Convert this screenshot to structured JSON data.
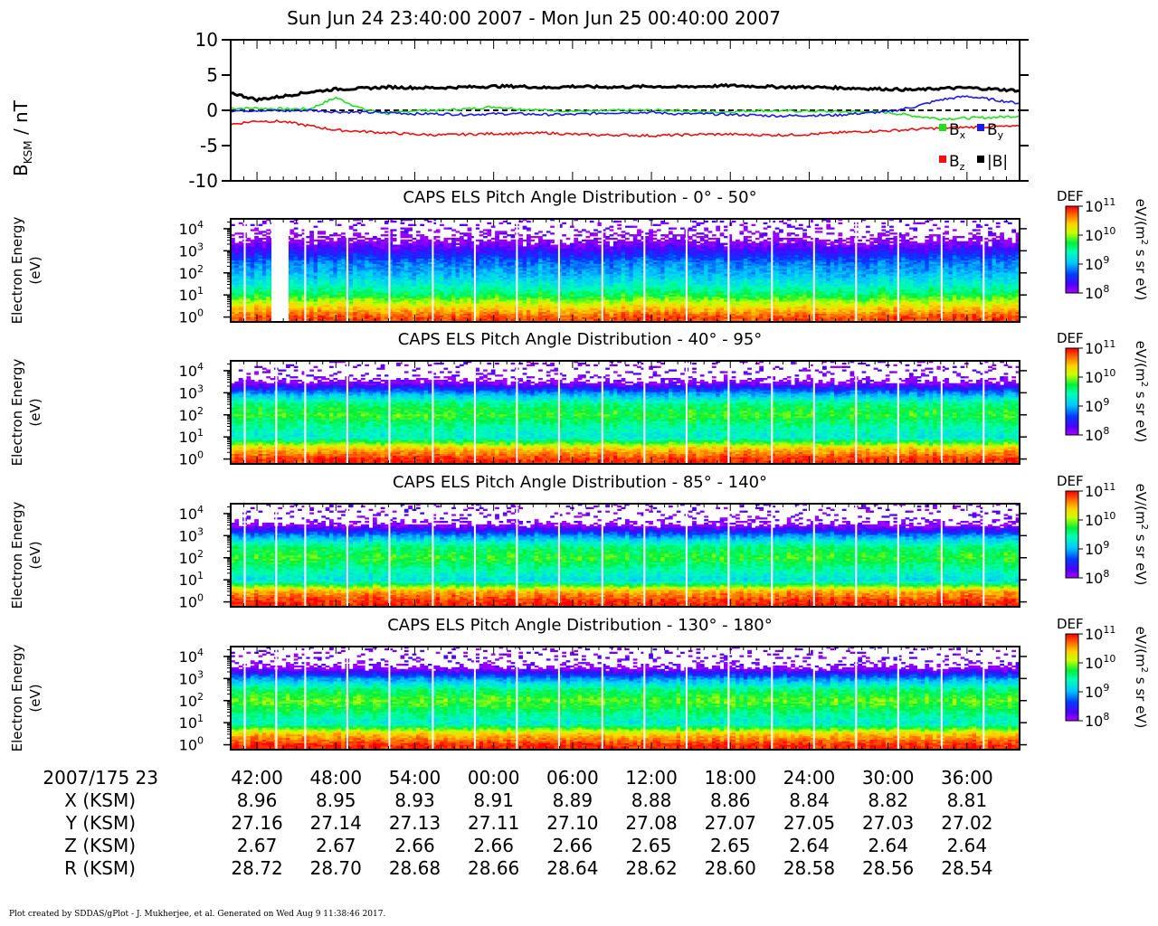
{
  "header": {
    "title": "Sun Jun 24 23:40:00 2007 - Mon Jun 25 00:40:00 2007"
  },
  "mag_panel": {
    "ylabel_main": "B",
    "ylabel_sub": "KSM",
    "ylabel_unit": " / nT",
    "yticks": [
      "10",
      "5",
      "0",
      "-5",
      "-10"
    ],
    "legend": {
      "bx_base": "B",
      "bx_sub": "x",
      "by_base": "B",
      "by_sub": "y",
      "bz_base": "B",
      "bz_sub": "z",
      "bmag": "|B|"
    }
  },
  "spectrogram_panels": [
    {
      "title": "CAPS ELS Pitch Angle Distribution - 0° - 50°",
      "ylabel1": "Electron Energy",
      "ylabel2": "(eV)"
    },
    {
      "title": "CAPS ELS Pitch Angle Distribution - 40° - 95°",
      "ylabel1": "Electron Energy",
      "ylabel2": "(eV)"
    },
    {
      "title": "CAPS ELS Pitch Angle Distribution - 85° - 140°",
      "ylabel1": "Electron Energy",
      "ylabel2": "(eV)"
    },
    {
      "title": "CAPS ELS Pitch Angle Distribution - 130° - 180°",
      "ylabel1": "Electron Energy",
      "ylabel2": "(eV)"
    }
  ],
  "colorbar": {
    "label": "DEF",
    "unit_pre": "eV/(m",
    "unit_sup": "2",
    "unit_post": " s sr eV)",
    "tick_base": "10",
    "tick_exps": [
      "11",
      "10",
      "9",
      "8"
    ]
  },
  "ephemeris": {
    "time_label": "2007/175 23",
    "times": [
      "42:00",
      "48:00",
      "54:00",
      "00:00",
      "06:00",
      "12:00",
      "18:00",
      "24:00",
      "30:00",
      "36:00"
    ],
    "rows": [
      {
        "label": "X (KSM)",
        "values": [
          "8.96",
          "8.95",
          "8.93",
          "8.91",
          "8.89",
          "8.88",
          "8.86",
          "8.84",
          "8.82",
          "8.81"
        ]
      },
      {
        "label": "Y (KSM)",
        "values": [
          "27.16",
          "27.14",
          "27.13",
          "27.11",
          "27.10",
          "27.08",
          "27.07",
          "27.05",
          "27.03",
          "27.02"
        ]
      },
      {
        "label": "Z (KSM)",
        "values": [
          "2.67",
          "2.67",
          "2.66",
          "2.66",
          "2.66",
          "2.65",
          "2.65",
          "2.64",
          "2.64",
          "2.64"
        ]
      },
      {
        "label": "R (KSM)",
        "values": [
          "28.72",
          "28.70",
          "28.68",
          "28.66",
          "28.64",
          "28.62",
          "28.60",
          "28.58",
          "28.56",
          "28.54"
        ]
      }
    ]
  },
  "footer": {
    "text": "Plot created by SDDAS/gPlot - J. Mukherjee, et al.  Generated on Wed Aug 9 11:38:46 2017."
  },
  "chart_data": [
    {
      "type": "line",
      "xlabel": "",
      "ylabel": "BKSM / nT",
      "ylim": [
        -10,
        10
      ],
      "x_minutes": [
        0,
        2,
        4,
        6,
        8,
        10,
        12,
        14,
        16,
        18,
        20,
        22,
        24,
        26,
        28,
        30,
        32,
        34,
        36,
        38,
        40,
        42,
        44,
        46,
        48,
        50,
        52,
        54,
        56,
        58,
        60
      ],
      "series": [
        {
          "name": "Bx",
          "color": "#22dd22",
          "values": [
            0.3,
            0.3,
            0.2,
            0.2,
            1.8,
            0.2,
            -0.5,
            0.0,
            0.0,
            0.2,
            0.5,
            0.2,
            0.0,
            -0.1,
            -0.1,
            0.0,
            0.0,
            0.0,
            -0.2,
            -0.2,
            0.0,
            -0.1,
            -0.1,
            -0.2,
            -0.2,
            -0.3,
            -0.8,
            -1.2,
            -1.1,
            -1.0,
            -0.8
          ]
        },
        {
          "name": "By",
          "color": "#1a1aee",
          "values": [
            -0.1,
            0.0,
            -0.1,
            0.0,
            -0.2,
            -0.3,
            -0.3,
            -0.5,
            -0.5,
            -0.6,
            -0.5,
            -0.5,
            -0.6,
            -0.6,
            -0.4,
            -0.3,
            -0.3,
            -0.5,
            -0.5,
            -0.6,
            -0.7,
            -0.8,
            -0.7,
            -0.7,
            -0.4,
            -0.2,
            0.5,
            1.5,
            2.0,
            1.5,
            1.0
          ]
        },
        {
          "name": "Bz",
          "color": "#ee1111",
          "values": [
            -2.0,
            -1.5,
            -1.6,
            -2.2,
            -2.8,
            -3.0,
            -3.2,
            -3.4,
            -3.5,
            -3.4,
            -3.3,
            -3.3,
            -3.2,
            -3.4,
            -3.5,
            -3.5,
            -3.6,
            -3.5,
            -3.4,
            -3.4,
            -3.5,
            -3.5,
            -3.4,
            -3.2,
            -3.0,
            -2.9,
            -2.7,
            -2.5,
            -2.4,
            -2.3,
            -2.3
          ]
        },
        {
          "name": "|B|",
          "color": "#000000",
          "values": [
            2.5,
            1.5,
            2.0,
            2.6,
            3.0,
            3.1,
            3.3,
            3.2,
            3.2,
            3.3,
            3.4,
            3.4,
            3.2,
            3.4,
            3.3,
            3.3,
            3.4,
            3.3,
            3.4,
            3.5,
            3.4,
            3.3,
            3.3,
            3.2,
            3.1,
            3.0,
            2.9,
            3.1,
            3.2,
            3.0,
            2.8
          ]
        }
      ]
    },
    {
      "type": "heatmap",
      "title": "CAPS ELS Pitch Angle Distribution - 0° - 50°",
      "ylabel": "Electron Energy (eV)",
      "y_scale": "log",
      "ylim": [
        0.6,
        28000
      ],
      "ytick_exps": [
        "0",
        "1",
        "2",
        "3",
        "4"
      ],
      "zlabel": "DEF eV/(m2 s sr eV)",
      "zlim": [
        100000000.0,
        100000000000.0
      ],
      "z_scale": "log",
      "profile_log_energy": [
        0.0,
        0.5,
        1.0,
        1.5,
        2.0,
        2.5,
        3.0,
        3.5,
        4.0
      ],
      "profile_log_def": [
        10.8,
        10.3,
        9.7,
        9.3,
        9.0,
        8.8,
        8.4,
        8.0,
        7.8
      ]
    },
    {
      "type": "heatmap",
      "title": "CAPS ELS Pitch Angle Distribution - 40° - 95°",
      "ylabel": "Electron Energy (eV)",
      "y_scale": "log",
      "ylim": [
        0.6,
        28000
      ],
      "ytick_exps": [
        "0",
        "1",
        "2",
        "3",
        "4"
      ],
      "zlabel": "DEF eV/(m2 s sr eV)",
      "zlim": [
        100000000.0,
        100000000000.0
      ],
      "z_scale": "log",
      "profile_log_energy": [
        0.0,
        0.5,
        1.0,
        1.5,
        2.0,
        2.5,
        3.0,
        3.5,
        4.0
      ],
      "profile_log_def": [
        10.9,
        10.4,
        9.3,
        9.5,
        9.8,
        9.6,
        8.9,
        8.0,
        7.6
      ]
    },
    {
      "type": "heatmap",
      "title": "CAPS ELS Pitch Angle Distribution - 85° - 140°",
      "ylabel": "Electron Energy (eV)",
      "y_scale": "log",
      "ylim": [
        0.6,
        28000
      ],
      "ytick_exps": [
        "0",
        "1",
        "2",
        "3",
        "4"
      ],
      "zlabel": "DEF eV/(m2 s sr eV)",
      "zlim": [
        100000000.0,
        100000000000.0
      ],
      "z_scale": "log",
      "profile_log_energy": [
        0.0,
        0.5,
        1.0,
        1.5,
        2.0,
        2.5,
        3.0,
        3.5,
        4.0
      ],
      "profile_log_def": [
        10.9,
        10.5,
        9.2,
        9.5,
        9.8,
        9.6,
        8.9,
        8.0,
        7.6
      ]
    },
    {
      "type": "heatmap",
      "title": "CAPS ELS Pitch Angle Distribution - 130° - 180°",
      "ylabel": "Electron Energy (eV)",
      "y_scale": "log",
      "ylim": [
        0.6,
        28000
      ],
      "ytick_exps": [
        "0",
        "1",
        "2",
        "3",
        "4"
      ],
      "zlabel": "DEF eV/(m2 s sr eV)",
      "zlim": [
        100000000.0,
        100000000000.0
      ],
      "z_scale": "log",
      "profile_log_energy": [
        0.0,
        0.5,
        1.0,
        1.5,
        2.0,
        2.5,
        3.0,
        3.5,
        4.0
      ],
      "profile_log_def": [
        10.9,
        10.4,
        9.3,
        9.6,
        9.9,
        9.6,
        8.9,
        8.0,
        7.6
      ]
    }
  ]
}
